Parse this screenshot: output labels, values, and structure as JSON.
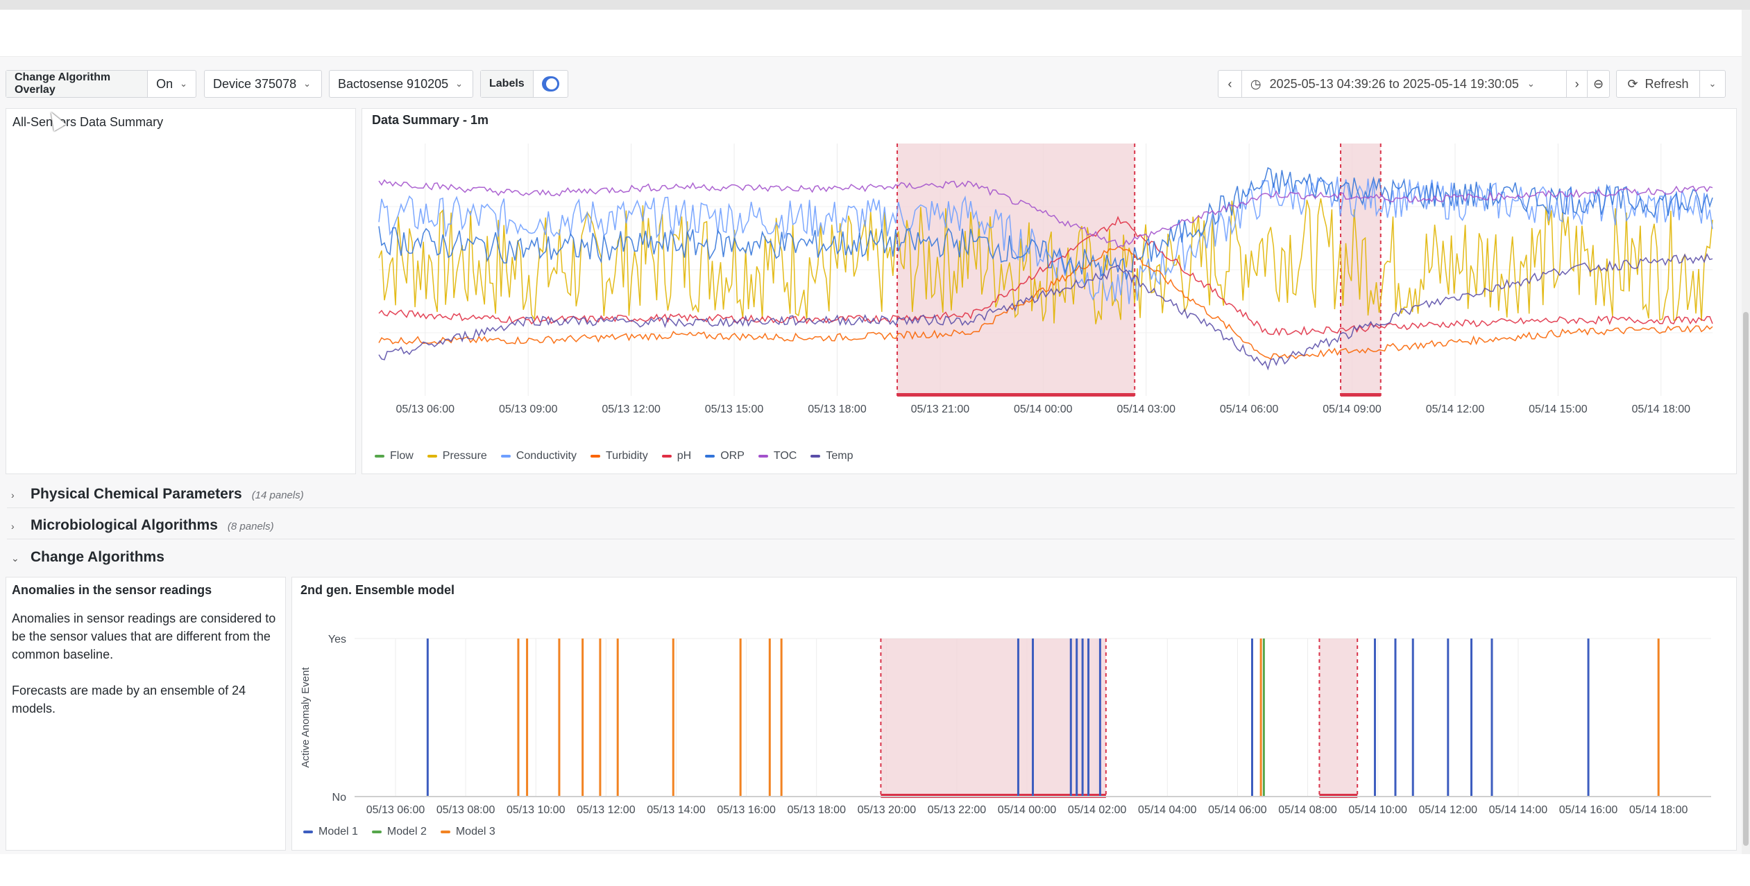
{
  "toolbar": {
    "overlay_label": "Change Algorithm Overlay",
    "overlay_value": "On",
    "device_value": "Device 375078",
    "sensor_value": "Bactosense 910205",
    "labels_label": "Labels",
    "labels_toggle": true,
    "time_range": "2025-05-13 04:39:26 to 2025-05-14 19:30:05",
    "refresh_label": "Refresh"
  },
  "panels": {
    "summary_side_title": "All-Sensors Data Summary",
    "summary_chart_title": "Data Summary - 1m",
    "anomaly_title": "Anomalies in the sensor readings",
    "anomaly_p1": "Anomalies in sensor readings are considered to be the sensor values that are different from the common baseline.",
    "anomaly_p2": "Forecasts are made by an ensemble of 24 models.",
    "ensemble_title": "2nd gen. Ensemble model"
  },
  "sections": [
    {
      "name": "Physical Chemical Parameters",
      "count": "(14 panels)",
      "expanded": false
    },
    {
      "name": "Microbiological Algorithms",
      "count": "(8 panels)",
      "expanded": false
    },
    {
      "name": "Change Algorithms",
      "count": "",
      "expanded": true
    }
  ],
  "colors": {
    "flow": "#56a64b",
    "pressure": "#e0b400",
    "conductivity": "#6e9fff",
    "turbidity": "#fa6400",
    "ph": "#e02f44",
    "orp": "#3274d9",
    "toc": "#a352cc",
    "temp": "#5a4ea8",
    "model1": "#3d5dbf",
    "model2": "#56a64b",
    "model3": "#f28322",
    "overlay_fill": "#f2d6d9",
    "overlay_line": "#d9344a"
  },
  "chart_data": [
    {
      "type": "line",
      "title": "Data Summary - 1m",
      "x_ticks": [
        "05/13 06:00",
        "05/13 09:00",
        "05/13 12:00",
        "05/13 15:00",
        "05/13 18:00",
        "05/13 21:00",
        "05/14 00:00",
        "05/14 03:00",
        "05/14 06:00",
        "05/14 09:00",
        "05/14 12:00",
        "05/14 15:00",
        "05/14 18:00"
      ],
      "x_range": [
        "2025-05-13 04:39",
        "2025-05-14 19:30"
      ],
      "series": [
        {
          "name": "Flow",
          "color": "#56a64b",
          "values": []
        },
        {
          "name": "Pressure",
          "color": "#e0b400",
          "values": [
            0.55,
            0.5,
            0.55,
            0.5,
            0.55,
            0.45,
            0.6,
            0.5,
            0.55,
            0.5
          ]
        },
        {
          "name": "Conductivity",
          "color": "#6e9fff",
          "values": [
            0.72,
            0.7,
            0.71,
            0.7,
            0.72,
            0.4,
            0.8,
            0.78,
            0.76,
            0.74
          ]
        },
        {
          "name": "Turbidity",
          "color": "#fa6400",
          "values": [
            0.22,
            0.22,
            0.24,
            0.23,
            0.25,
            0.6,
            0.15,
            0.2,
            0.25,
            0.27
          ]
        },
        {
          "name": "pH",
          "color": "#e02f44",
          "values": [
            0.33,
            0.3,
            0.31,
            0.3,
            0.32,
            0.7,
            0.25,
            0.28,
            0.3,
            0.3
          ]
        },
        {
          "name": "ORP",
          "color": "#3274d9",
          "values": [
            0.62,
            0.58,
            0.6,
            0.6,
            0.61,
            0.5,
            0.85,
            0.8,
            0.78,
            0.76
          ]
        },
        {
          "name": "TOC",
          "color": "#a352cc",
          "values": [
            0.85,
            0.8,
            0.83,
            0.82,
            0.84,
            0.6,
            0.8,
            0.78,
            0.8,
            0.82
          ]
        },
        {
          "name": "Temp",
          "color": "#5a4ea8",
          "values": [
            0.15,
            0.3,
            0.29,
            0.3,
            0.3,
            0.5,
            0.12,
            0.35,
            0.5,
            0.55
          ]
        }
      ],
      "overlay_ranges": [
        [
          "05/13 19:45",
          "05/14 02:40"
        ],
        [
          "05/14 08:40",
          "05/14 09:50"
        ]
      ]
    },
    {
      "type": "bar",
      "title": "2nd gen. Ensemble model",
      "ylabel": "Active Anomaly Event",
      "y_ticks": [
        "No",
        "Yes"
      ],
      "x_ticks": [
        "05/13 06:00",
        "05/13 08:00",
        "05/13 10:00",
        "05/13 12:00",
        "05/13 14:00",
        "05/13 16:00",
        "05/13 18:00",
        "05/13 20:00",
        "05/13 22:00",
        "05/14 00:00",
        "05/14 02:00",
        "05/14 04:00",
        "05/14 06:00",
        "05/14 08:00",
        "05/14 10:00",
        "05/14 12:00",
        "05/14 14:00",
        "05/14 16:00",
        "05/14 18:00"
      ],
      "series": [
        {
          "name": "Model 1",
          "color": "#3d5dbf",
          "events": [
            "05/13 06:55",
            "05/13 23:45",
            "05/14 00:10",
            "05/14 01:15",
            "05/14 01:25",
            "05/14 01:35",
            "05/14 01:45",
            "05/14 02:05",
            "05/14 06:25",
            "05/14 09:55",
            "05/14 10:30",
            "05/14 11:00",
            "05/14 12:00",
            "05/14 12:40",
            "05/14 13:15",
            "05/14 16:00"
          ]
        },
        {
          "name": "Model 2",
          "color": "#56a64b",
          "events": [
            "05/14 06:45"
          ]
        },
        {
          "name": "Model 3",
          "color": "#f28322",
          "events": [
            "05/13 09:30",
            "05/13 09:45",
            "05/13 10:40",
            "05/13 11:20",
            "05/13 11:50",
            "05/13 12:20",
            "05/13 13:55",
            "05/13 15:50",
            "05/13 16:40",
            "05/13 17:00",
            "05/14 06:40",
            "05/14 18:00"
          ]
        }
      ],
      "overlay_ranges": [
        [
          "05/13 19:50",
          "05/14 02:15"
        ],
        [
          "05/14 08:20",
          "05/14 09:25"
        ]
      ]
    }
  ]
}
